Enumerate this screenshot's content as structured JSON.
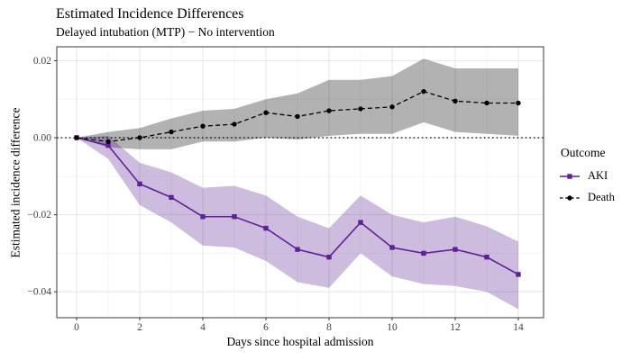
{
  "title": "Estimated Incidence Differences",
  "subtitle": "Delayed intubation (MTP) − No intervention",
  "legend": {
    "title": "Outcome",
    "items": [
      {
        "label": "AKI"
      },
      {
        "label": "Death"
      }
    ]
  },
  "chart_data": {
    "type": "line",
    "title": "Estimated Incidence Differences",
    "subtitle": "Delayed intubation (MTP) − No intervention",
    "xlabel": "Days since hospital admission",
    "ylabel": "Estimated incidence difference",
    "xlim": [
      -0.63,
      14.8
    ],
    "ylim": [
      -0.0467,
      0.0236
    ],
    "grid": true,
    "legend_position": "right",
    "reference_line": {
      "y": 0,
      "style": "dotted",
      "color": "#000000"
    },
    "x": [
      0,
      1,
      2,
      3,
      4,
      5,
      6,
      7,
      8,
      9,
      10,
      11,
      12,
      13,
      14
    ],
    "x_ticks": {
      "major": [
        0,
        2,
        4,
        6,
        8,
        10,
        12,
        14
      ],
      "minor": [
        1,
        3,
        5,
        7,
        9,
        11,
        13
      ],
      "labels": [
        "0",
        "2",
        "4",
        "6",
        "8",
        "10",
        "12",
        "14"
      ]
    },
    "y_ticks": {
      "major": [
        0.02,
        0,
        -0.02,
        -0.04
      ],
      "minor": [
        0.01,
        -0.01,
        -0.03
      ],
      "labels": [
        "0.02",
        "0.00",
        "−0.02",
        "−0.04"
      ]
    },
    "band_opacity": 0.3,
    "series": [
      {
        "name": "AKI",
        "color": "#5E2096",
        "line_style": "solid",
        "marker": "square",
        "values": [
          0,
          -0.002,
          -0.012,
          -0.0155,
          -0.0205,
          -0.0205,
          -0.0235,
          -0.029,
          -0.031,
          -0.022,
          -0.0285,
          -0.03,
          -0.029,
          -0.031,
          -0.0355
        ],
        "lower": [
          0,
          -0.0055,
          -0.0175,
          -0.022,
          -0.028,
          -0.0285,
          -0.032,
          -0.0375,
          -0.039,
          -0.03,
          -0.036,
          -0.038,
          -0.0385,
          -0.04,
          -0.0445
        ],
        "upper": [
          0,
          0.0005,
          -0.0065,
          -0.009,
          -0.013,
          -0.0125,
          -0.015,
          -0.0205,
          -0.0235,
          -0.015,
          -0.02,
          -0.022,
          -0.0205,
          -0.023,
          -0.027
        ]
      },
      {
        "name": "Death",
        "color": "#000000",
        "line_style": "dashed",
        "marker": "circle",
        "values": [
          0,
          -0.001,
          0,
          0.0015,
          0.003,
          0.0035,
          0.0065,
          0.0055,
          0.007,
          0.0075,
          0.008,
          0.012,
          0.0095,
          0.009,
          0.009
        ],
        "lower": [
          0,
          -0.0025,
          -0.003,
          -0.003,
          -0.001,
          -0.001,
          0,
          -0.0005,
          0.0005,
          0.001,
          0.001,
          0.004,
          0.0015,
          0.001,
          0.0005
        ],
        "upper": [
          0,
          0.0015,
          0.0025,
          0.005,
          0.007,
          0.0075,
          0.01,
          0.0115,
          0.015,
          0.015,
          0.016,
          0.0205,
          0.018,
          0.018,
          0.018
        ]
      }
    ]
  }
}
